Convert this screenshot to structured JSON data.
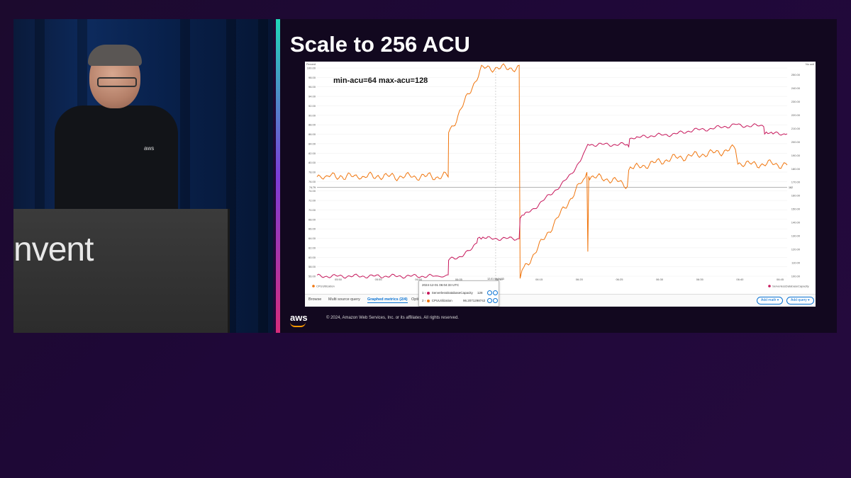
{
  "slide": {
    "title": "Scale to 256 ACU",
    "footer_logo": "aws",
    "copyright": "© 2024, Amazon Web Services, Inc. or its affiliates. All rights reserved."
  },
  "speaker": {
    "podium_text": "nvent",
    "shirt_logo": "aws"
  },
  "console": {
    "tabs": [
      "Browse",
      "Multi source query",
      "Graphed metrics (2/4)",
      "Opti"
    ],
    "active_tab": "Graphed metrics (2/4)",
    "add_math_label": "Add math",
    "add_query_label": "Add query",
    "tooltip": {
      "timestamp": "2024-12-01 06:04:33 UTC",
      "rows": [
        {
          "index": "1",
          "name": "ServerlessDatabaseCapacity",
          "value": "128",
          "color": "#c7175b"
        },
        {
          "index": "2",
          "name": "CPUUtilization",
          "value": "96.2071298742",
          "color": "#f0750d"
        }
      ]
    }
  },
  "chart_data": {
    "type": "line",
    "annotation": "min-acu=64 max-acu=128",
    "ylabel_left": "Percent",
    "ylabel_right": "No unit",
    "y_left_ticks": [
      "100.00",
      "98.00",
      "96.00",
      "94.00",
      "92.00",
      "90.00",
      "88.00",
      "86.00",
      "84.00",
      "82.00",
      "80.00",
      "78.00",
      "76.00",
      "74.00",
      "72.00",
      "70.00",
      "68.00",
      "66.00",
      "64.00",
      "62.00",
      "60.00",
      "58.00",
      "56.00"
    ],
    "y_right_ticks": [
      "250.00",
      "240.00",
      "230.00",
      "220.00",
      "210.00",
      "200.00",
      "190.00",
      "180.00",
      "170.00",
      "160.00",
      "150.00",
      "140.00",
      "130.00",
      "120.00",
      "110.00",
      "100.00"
    ],
    "x_ticks": [
      "05:50",
      "05:55",
      "06:00",
      "06:05",
      "06:10",
      "06:15",
      "06:20",
      "06:25",
      "06:30",
      "06:35",
      "06:40",
      "06:45"
    ],
    "ylim_left": [
      56,
      100
    ],
    "ylim_right": [
      100,
      255
    ],
    "threshold_left": "74.79",
    "threshold_right": "162",
    "cursor_label": "12-01 06:04:33",
    "legend_left": "CPUUtilization",
    "legend_right": "ServerlessDatabaseCapacity",
    "series": [
      {
        "name": "CPUUtilization",
        "axis": "left",
        "color": "#f0750d",
        "points": [
          [
            0,
            77
          ],
          [
            1,
            77.5
          ],
          [
            2,
            76.8
          ],
          [
            3,
            77.2
          ],
          [
            4,
            77
          ],
          [
            5,
            77.3
          ],
          [
            6,
            76.9
          ],
          [
            7,
            77.1
          ],
          [
            8,
            77
          ],
          [
            9,
            77.4
          ],
          [
            10,
            76.8
          ],
          [
            11,
            77.2
          ],
          [
            12,
            77
          ],
          [
            13,
            77.3
          ],
          [
            14,
            77.1
          ],
          [
            15,
            77
          ],
          [
            16,
            77.2
          ],
          [
            17,
            77
          ],
          [
            18,
            77.1
          ],
          [
            19,
            77
          ],
          [
            20,
            77.2
          ],
          [
            21,
            77
          ],
          [
            22,
            77.1
          ],
          [
            23,
            77
          ],
          [
            24,
            77.2
          ],
          [
            25,
            77
          ],
          [
            26,
            77
          ],
          [
            27,
            77.2
          ],
          [
            27.9,
            77
          ],
          [
            28,
            86.5
          ],
          [
            29,
            88
          ],
          [
            30,
            90
          ],
          [
            31,
            92
          ],
          [
            32,
            94
          ],
          [
            33,
            96
          ],
          [
            34,
            98
          ],
          [
            35,
            99.8
          ],
          [
            36,
            100
          ],
          [
            38,
            100
          ],
          [
            40,
            100
          ],
          [
            42,
            100
          ],
          [
            43,
            100
          ],
          [
            43.2,
            56.1
          ],
          [
            44,
            57.5
          ],
          [
            45,
            59
          ],
          [
            46,
            60.5
          ],
          [
            47,
            62
          ],
          [
            48,
            63.5
          ],
          [
            49,
            65
          ],
          [
            50,
            66.5
          ],
          [
            51,
            68
          ],
          [
            52,
            69.5
          ],
          [
            53,
            71
          ],
          [
            54,
            72.5
          ],
          [
            55,
            74
          ],
          [
            56,
            75.5
          ],
          [
            57,
            76.5
          ],
          [
            57.4,
            78
          ],
          [
            57.6,
            61
          ],
          [
            57.8,
            77
          ],
          [
            58,
            77
          ],
          [
            60,
            76.8
          ],
          [
            62,
            76.5
          ],
          [
            64,
            76
          ],
          [
            65,
            75.5
          ],
          [
            66,
            75.3
          ],
          [
            66.3,
            78.5
          ],
          [
            68,
            79
          ],
          [
            70,
            79.5
          ],
          [
            72,
            80
          ],
          [
            74,
            80.5
          ],
          [
            76,
            81
          ],
          [
            78,
            81.2
          ],
          [
            80,
            81.5
          ],
          [
            82,
            81.8
          ],
          [
            84,
            82
          ],
          [
            86,
            82.3
          ],
          [
            88,
            82.8
          ],
          [
            89,
            83
          ],
          [
            89.5,
            79.5
          ],
          [
            91,
            79.8
          ],
          [
            93,
            79.6
          ],
          [
            95,
            79.7
          ],
          [
            97,
            79.8
          ],
          [
            98,
            79.6
          ],
          [
            100,
            79.5
          ]
        ]
      },
      {
        "name": "ServerlessDatabaseCapacity",
        "axis": "right",
        "color": "#c7175b",
        "points": [
          [
            0,
            100
          ],
          [
            5,
            100
          ],
          [
            10,
            100
          ],
          [
            15,
            100
          ],
          [
            20,
            100
          ],
          [
            25,
            100
          ],
          [
            27.9,
            100
          ],
          [
            28,
            112
          ],
          [
            29,
            113
          ],
          [
            30,
            114
          ],
          [
            31,
            116
          ],
          [
            32,
            118
          ],
          [
            33,
            120
          ],
          [
            34,
            126
          ],
          [
            34.2,
            128
          ],
          [
            36,
            128
          ],
          [
            38,
            128
          ],
          [
            40,
            128
          ],
          [
            42,
            128
          ],
          [
            43,
            128
          ],
          [
            43.2,
            143
          ],
          [
            44,
            145
          ],
          [
            46,
            150
          ],
          [
            48,
            156
          ],
          [
            50,
            162
          ],
          [
            52,
            168
          ],
          [
            54,
            176
          ],
          [
            56,
            186
          ],
          [
            57,
            192
          ],
          [
            57.6,
            198
          ],
          [
            58,
            198
          ],
          [
            60,
            198
          ],
          [
            62,
            198
          ],
          [
            64,
            198
          ],
          [
            66,
            198
          ],
          [
            66.3,
            197
          ],
          [
            66.5,
            201
          ],
          [
            68,
            203
          ],
          [
            70,
            204
          ],
          [
            72,
            205
          ],
          [
            74,
            205
          ],
          [
            76,
            206
          ],
          [
            78,
            207
          ],
          [
            80,
            209
          ],
          [
            82,
            209
          ],
          [
            84,
            210
          ],
          [
            86,
            211
          ],
          [
            88,
            212
          ],
          [
            89,
            213
          ],
          [
            90,
            212
          ],
          [
            92,
            212
          ],
          [
            94,
            212
          ],
          [
            95,
            212
          ],
          [
            95.2,
            206
          ],
          [
            97,
            206
          ],
          [
            98,
            206
          ],
          [
            100,
            206
          ]
        ]
      }
    ]
  }
}
